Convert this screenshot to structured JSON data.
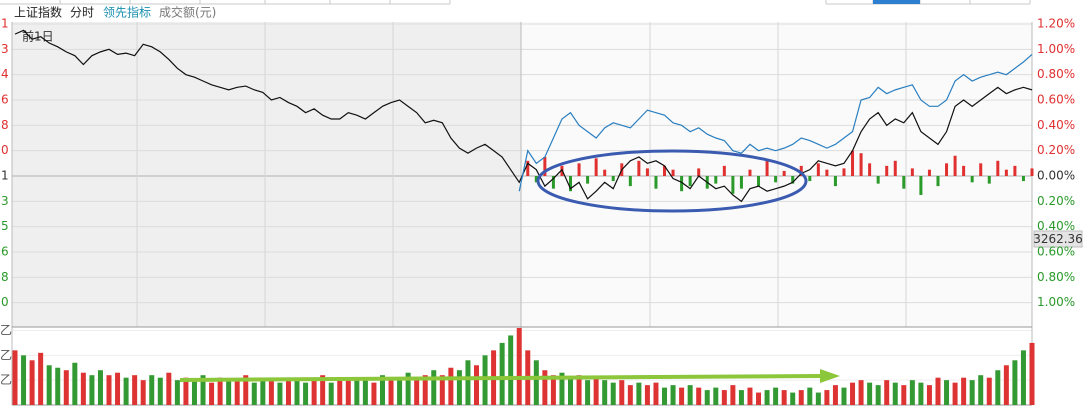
{
  "chart_data": [
    {
      "type": "line",
      "tab": "分时",
      "label": "前1日",
      "price_tag": "3262.36",
      "categories": [
        null,
        null,
        null,
        null,
        null,
        null,
        null,
        null,
        null,
        null,
        null,
        null,
        null,
        null,
        null,
        null,
        null,
        null,
        null,
        null,
        null,
        null,
        null,
        null,
        null,
        null,
        null,
        null,
        null,
        null,
        null,
        null,
        null,
        null,
        null,
        null,
        null,
        null,
        null,
        null,
        null,
        null,
        null,
        null,
        null,
        null,
        null,
        null,
        null,
        null,
        null,
        null,
        null,
        null,
        null,
        null,
        null,
        null,
        null,
        null,
        null,
        null,
        null,
        null,
        null,
        null,
        null,
        null,
        null,
        null,
        null,
        null,
        null,
        null,
        null,
        null,
        null,
        null,
        null,
        null,
        null,
        null,
        null,
        null,
        null,
        null,
        null,
        null,
        null,
        null,
        null,
        null,
        null,
        null,
        null,
        null,
        null,
        null,
        null,
        null,
        null,
        null,
        null,
        null,
        null,
        null,
        null,
        null,
        null,
        null,
        null,
        null,
        null,
        null,
        null,
        null,
        null,
        null,
        null,
        null
      ],
      "series": [
        {
          "name": "上证指数",
          "color": "#111111",
          "values": [
            1.12,
            1.15,
            1.08,
            1.1,
            1.05,
            1.02,
            0.98,
            0.95,
            0.88,
            0.95,
            0.98,
            1.0,
            0.96,
            0.97,
            0.95,
            1.04,
            1.02,
            0.98,
            0.92,
            0.85,
            0.8,
            0.78,
            0.75,
            0.72,
            0.7,
            0.68,
            0.7,
            0.71,
            0.68,
            0.66,
            0.6,
            0.62,
            0.58,
            0.55,
            0.5,
            0.53,
            0.48,
            0.45,
            0.45,
            0.5,
            0.48,
            0.45,
            0.5,
            0.55,
            0.58,
            0.6,
            0.55,
            0.5,
            0.42,
            0.44,
            0.42,
            0.3,
            0.22,
            0.18,
            0.22,
            0.25,
            0.2,
            0.15,
            0.05,
            -0.05,
            0.1,
            0.05,
            -0.08,
            -0.02,
            0.05,
            -0.1,
            -0.05,
            -0.18,
            -0.12,
            -0.05,
            -0.1,
            0.05,
            0.12,
            0.15,
            0.1,
            0.12,
            0.08,
            -0.02,
            -0.05,
            -0.1,
            0.0,
            -0.05,
            -0.1,
            -0.08,
            -0.15,
            -0.2,
            -0.1,
            -0.08,
            -0.12,
            -0.1,
            -0.08,
            -0.05,
            0.02,
            0.05,
            0.12,
            0.1,
            0.08,
            0.1,
            0.2,
            0.35,
            0.45,
            0.5,
            0.4,
            0.45,
            0.42,
            0.5,
            0.35,
            0.3,
            0.25,
            0.35,
            0.55,
            0.6,
            0.55,
            0.6,
            0.65,
            0.7,
            0.65,
            0.68,
            0.7,
            0.68
          ]
        },
        {
          "name": "领先指标",
          "color": "#2a7fc0",
          "values": [
            null,
            null,
            null,
            null,
            null,
            null,
            null,
            null,
            null,
            null,
            null,
            null,
            null,
            null,
            null,
            null,
            null,
            null,
            null,
            null,
            null,
            null,
            null,
            null,
            null,
            null,
            null,
            null,
            null,
            null,
            null,
            null,
            null,
            null,
            null,
            null,
            null,
            null,
            null,
            null,
            null,
            null,
            null,
            null,
            null,
            null,
            null,
            null,
            null,
            null,
            null,
            null,
            null,
            null,
            null,
            null,
            null,
            null,
            null,
            -0.12,
            0.2,
            0.1,
            0.15,
            0.3,
            0.45,
            0.5,
            0.4,
            0.35,
            0.3,
            0.38,
            0.42,
            0.4,
            0.38,
            0.45,
            0.52,
            0.5,
            0.48,
            0.42,
            0.4,
            0.35,
            0.38,
            0.33,
            0.3,
            0.28,
            0.2,
            0.18,
            0.25,
            0.2,
            0.22,
            0.2,
            0.22,
            0.25,
            0.3,
            0.28,
            0.25,
            0.22,
            0.25,
            0.3,
            0.35,
            0.6,
            0.62,
            0.7,
            0.65,
            0.68,
            0.7,
            0.72,
            0.6,
            0.55,
            0.55,
            0.6,
            0.75,
            0.8,
            0.75,
            0.78,
            0.8,
            0.82,
            0.8,
            0.85,
            0.9,
            0.96
          ]
        }
      ],
      "bars": {
        "values": [
          null,
          null,
          null,
          null,
          null,
          null,
          null,
          null,
          null,
          null,
          null,
          null,
          null,
          null,
          null,
          null,
          null,
          null,
          null,
          null,
          null,
          null,
          null,
          null,
          null,
          null,
          null,
          null,
          null,
          null,
          null,
          null,
          null,
          null,
          null,
          null,
          null,
          null,
          null,
          null,
          null,
          null,
          null,
          null,
          null,
          null,
          null,
          null,
          null,
          null,
          null,
          null,
          null,
          null,
          null,
          null,
          null,
          null,
          null,
          null,
          0.12,
          -0.05,
          0.15,
          -0.1,
          0.08,
          -0.12,
          0.1,
          -0.06,
          0.14,
          0.05,
          -0.04,
          0.1,
          -0.08,
          0.12,
          0.06,
          -0.1,
          0.08,
          0.05,
          -0.12,
          -0.08,
          0.06,
          -0.1,
          -0.06,
          0.08,
          -0.14,
          -0.1,
          0.05,
          -0.08,
          0.12,
          -0.05,
          0.04,
          -0.06,
          0.08,
          -0.04,
          0.1,
          0.05,
          -0.08,
          0.06,
          0.2,
          0.18,
          0.1,
          -0.06,
          0.08,
          0.12,
          -0.1,
          0.06,
          -0.15,
          0.05,
          -0.08,
          0.1,
          0.16,
          0.08,
          -0.05,
          0.1,
          -0.06,
          0.12,
          0.05,
          0.08,
          -0.04,
          0.06
        ]
      },
      "up_color": "#e03030",
      "down_color": "#2a9a2a",
      "zero_color": "#333333",
      "ylim": [
        -1.2,
        1.2
      ],
      "yticks": [
        {
          "value": 1.2,
          "label": "1.20%"
        },
        {
          "value": 1.0,
          "label": "1.00%"
        },
        {
          "value": 0.8,
          "label": "0.80%"
        },
        {
          "value": 0.6,
          "label": "0.60%"
        },
        {
          "value": 0.4,
          "label": "0.40%"
        },
        {
          "value": 0.2,
          "label": "0.20%"
        },
        {
          "value": 0,
          "label": "0.00%"
        },
        {
          "value": -0.2,
          "label": "0.20%"
        },
        {
          "value": -0.4,
          "label": "0.40%"
        },
        {
          "value": -0.6,
          "label": "0.60%"
        },
        {
          "value": -0.8,
          "label": "0.80%"
        },
        {
          "value": -1.0,
          "label": "1.00%"
        }
      ],
      "left_labels": [
        "1",
        "3",
        "4",
        "6",
        "8",
        "0",
        "1",
        "3",
        "5",
        "6",
        "8",
        "0"
      ],
      "grid": true
    },
    {
      "type": "bar",
      "name": "成交额(元)",
      "values": [
        22,
        20,
        18,
        21,
        16,
        15,
        14,
        17,
        13,
        12,
        14,
        12,
        13,
        11,
        12,
        10,
        12,
        11,
        13,
        10,
        11,
        10,
        12,
        9,
        11,
        10,
        10,
        12,
        9,
        11,
        10,
        9,
        11,
        10,
        9,
        10,
        12,
        9,
        10,
        11,
        10,
        11,
        9,
        12,
        10,
        11,
        13,
        10,
        12,
        14,
        12,
        15,
        14,
        18,
        16,
        20,
        22,
        25,
        28,
        31,
        22,
        18,
        14,
        12,
        13,
        11,
        12,
        10,
        11,
        10,
        9,
        10,
        8,
        9,
        8,
        9,
        7,
        8,
        7,
        8,
        7,
        6,
        7,
        6,
        8,
        6,
        7,
        5,
        6,
        7,
        6,
        5,
        6,
        7,
        5,
        6,
        8,
        7,
        9,
        10,
        9,
        8,
        10,
        9,
        8,
        10,
        9,
        8,
        11,
        10,
        9,
        11,
        10,
        12,
        11,
        14,
        16,
        18,
        22,
        25
      ],
      "colors": [
        "#d33",
        "#393",
        "#d33",
        "#d33",
        "#393",
        "#393",
        "#d33",
        "#393",
        "#d33",
        "#393",
        "#393",
        "#d33",
        "#d33",
        "#393",
        "#d33",
        "#d33",
        "#393",
        "#393",
        "#d33",
        "#393",
        "#d33",
        "#393",
        "#393",
        "#d33",
        "#d33",
        "#393",
        "#d33",
        "#d33",
        "#393",
        "#393",
        "#d33",
        "#393",
        "#d33",
        "#393",
        "#393",
        "#d33",
        "#d33",
        "#393",
        "#d33",
        "#d33",
        "#393",
        "#393",
        "#d33",
        "#393",
        "#d33",
        "#393",
        "#393",
        "#d33",
        "#d33",
        "#393",
        "#d33",
        "#d33",
        "#393",
        "#393",
        "#d33",
        "#393",
        "#d33",
        "#393",
        "#393",
        "#d33",
        "#d33",
        "#393",
        "#d33",
        "#d33",
        "#393",
        "#393",
        "#d33",
        "#393",
        "#d33",
        "#393",
        "#393",
        "#d33",
        "#d33",
        "#393",
        "#d33",
        "#d33",
        "#393",
        "#393",
        "#d33",
        "#393",
        "#d33",
        "#393",
        "#393",
        "#d33",
        "#d33",
        "#393",
        "#d33",
        "#d33",
        "#393",
        "#393",
        "#d33",
        "#393",
        "#d33",
        "#393",
        "#393",
        "#d33",
        "#d33",
        "#393",
        "#d33",
        "#d33",
        "#393",
        "#393",
        "#d33",
        "#393",
        "#d33",
        "#393",
        "#393",
        "#d33",
        "#d33",
        "#393",
        "#d33",
        "#d33",
        "#393",
        "#393",
        "#d33",
        "#393",
        "#d33",
        "#393",
        "#393",
        "#d33"
      ],
      "ylim": [
        0,
        31
      ],
      "yticks": [
        {
          "value": 30,
          "label": "乙"
        },
        {
          "value": 20,
          "label": "乙"
        },
        {
          "value": 10,
          "label": "乙"
        }
      ]
    }
  ]
}
